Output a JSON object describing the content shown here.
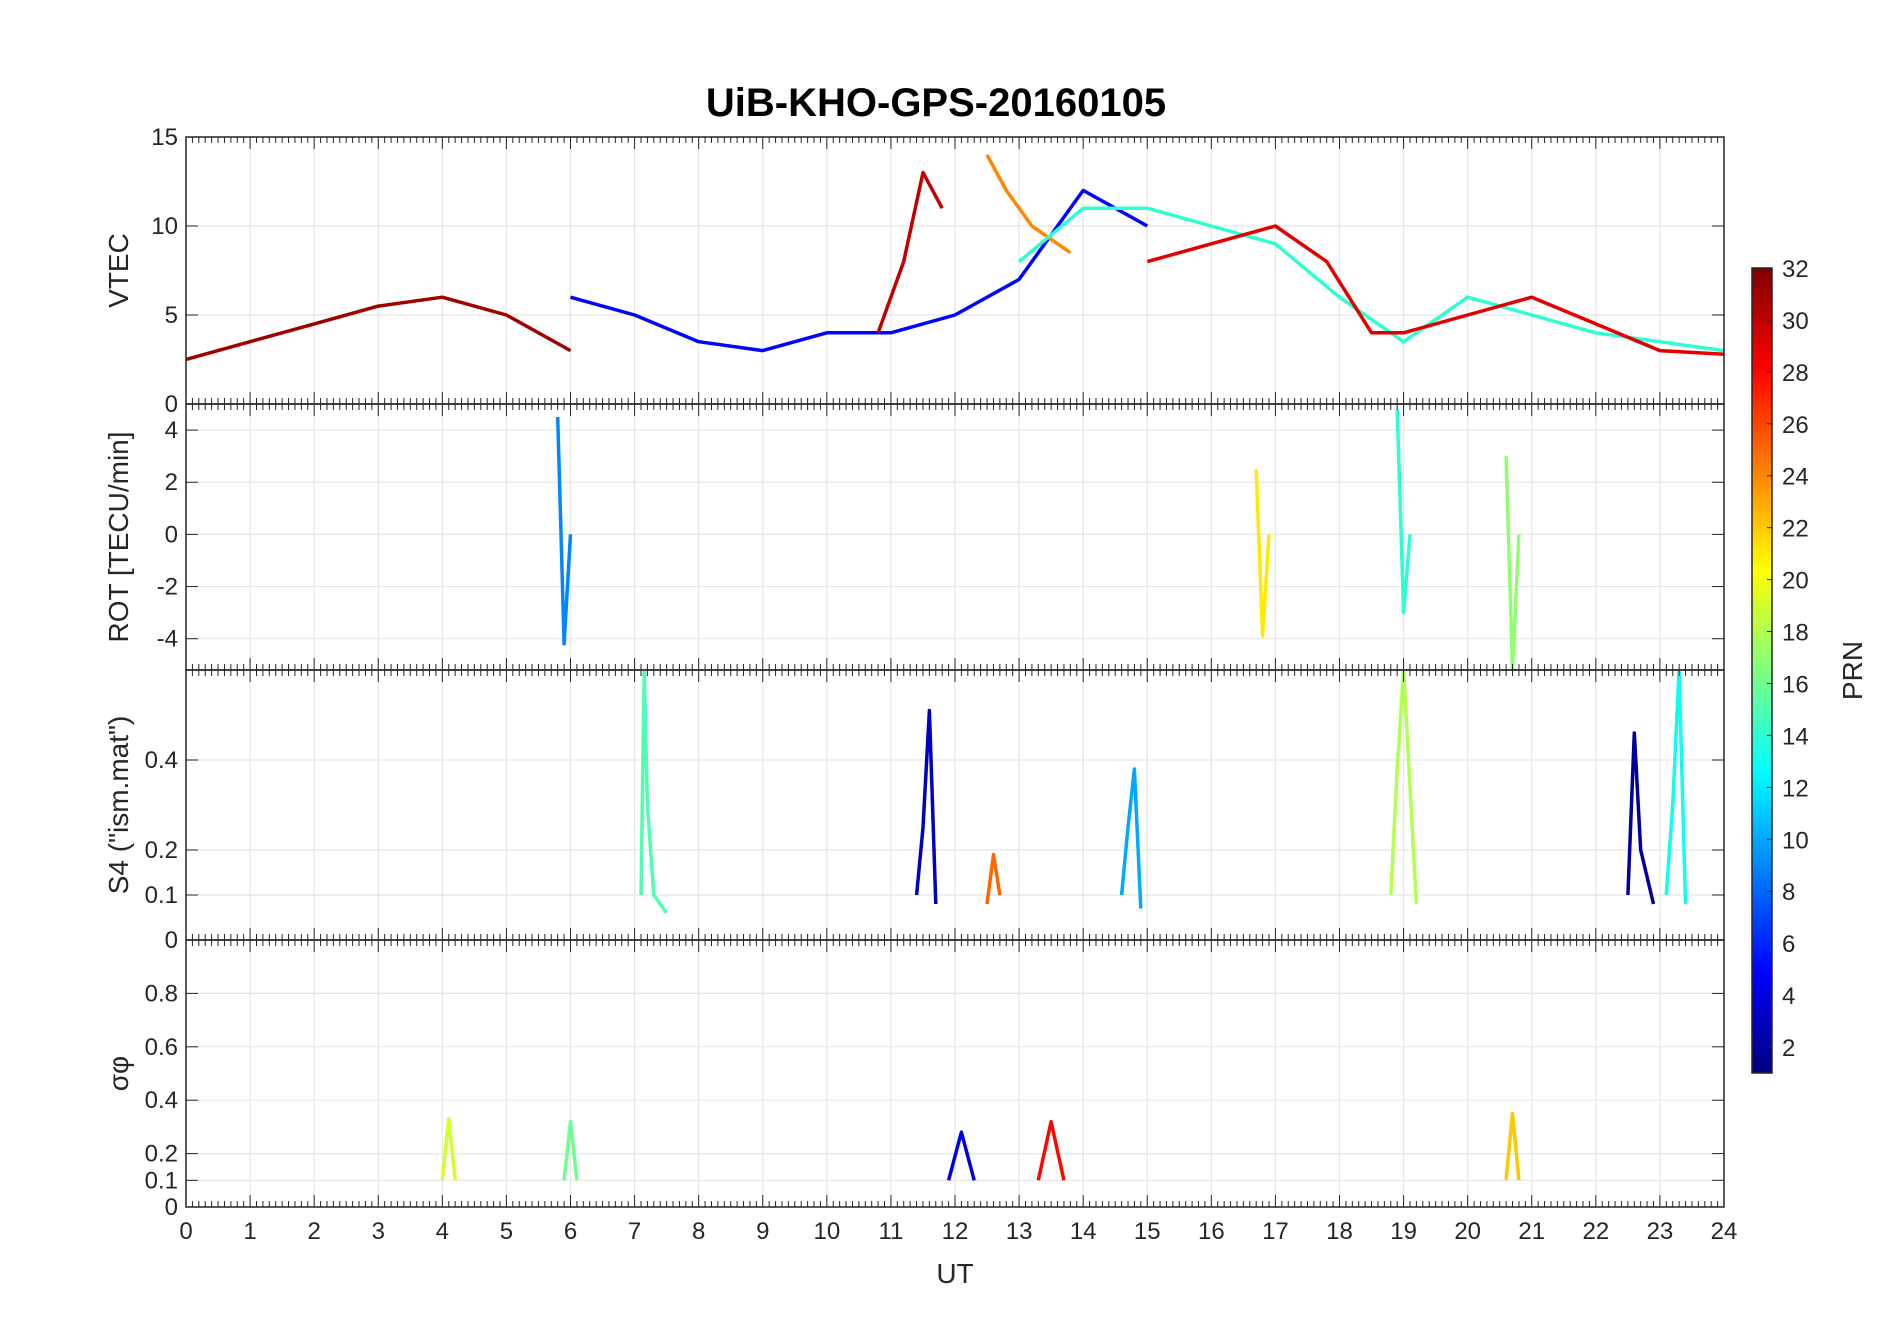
{
  "title": "UiB-KHO-GPS-20160105",
  "colors": {
    "jet_stops": [
      "#00007f",
      "#0000ff",
      "#007fff",
      "#00ffff",
      "#7fff7f",
      "#ffff00",
      "#ff7f00",
      "#ff0000",
      "#7f0000"
    ],
    "axes": "#262626",
    "grid": "#e6e6e6"
  },
  "chart_data": [
    {
      "type": "line",
      "panel": "vtec",
      "ylabel": "VTEC",
      "xlim": [
        0,
        24
      ],
      "ylim": [
        0,
        15
      ],
      "yticks": [
        0,
        5,
        10,
        15
      ],
      "ytick_labels": [
        "0",
        "5",
        "10",
        "15"
      ],
      "series": [
        {
          "prn": 31,
          "x": [
            0,
            1,
            2,
            3,
            4,
            5,
            6
          ],
          "y": [
            2.5,
            3.5,
            4.5,
            5.5,
            6,
            5,
            3
          ]
        },
        {
          "prn": 5,
          "x": [
            6,
            7,
            8,
            9,
            10,
            11,
            12,
            13,
            14,
            15
          ],
          "y": [
            6,
            5,
            3.5,
            3,
            4,
            4,
            5,
            7,
            12,
            10
          ]
        },
        {
          "prn": 30,
          "x": [
            10.8,
            11.2,
            11.5,
            11.8
          ],
          "y": [
            4,
            8,
            13,
            11
          ]
        },
        {
          "prn": 24,
          "x": [
            12.5,
            12.8,
            13.2,
            13.8
          ],
          "y": [
            14,
            12,
            10,
            8.5
          ]
        },
        {
          "prn": 14,
          "x": [
            13,
            14,
            15,
            16,
            17,
            18,
            19,
            20,
            21,
            22,
            23,
            24
          ],
          "y": [
            8,
            11,
            11,
            10,
            9,
            6,
            3.5,
            6,
            5,
            4,
            3.5,
            3
          ]
        },
        {
          "prn": 29,
          "x": [
            15,
            16,
            17,
            17.8,
            18.5,
            19,
            20,
            21,
            22,
            23,
            24
          ],
          "y": [
            8,
            9,
            10,
            8,
            4,
            4,
            5,
            6,
            4.5,
            3,
            2.8
          ]
        }
      ]
    },
    {
      "type": "line",
      "panel": "rot",
      "ylabel": "ROT [TECU/min]",
      "xlim": [
        0,
        24
      ],
      "ylim": [
        -5.2,
        5
      ],
      "yticks": [
        -4,
        -2,
        0,
        2,
        4
      ],
      "ytick_labels": [
        "-4",
        "-2",
        "0",
        "2",
        "4"
      ],
      "series": [
        {
          "prn": 9,
          "x": [
            5.8,
            5.9,
            6.0
          ],
          "y": [
            4.5,
            -4.2,
            0
          ]
        },
        {
          "prn": 14,
          "x": [
            18.9,
            19.0,
            19.1
          ],
          "y": [
            4.8,
            -3,
            0
          ]
        },
        {
          "prn": 17,
          "x": [
            20.6,
            20.7,
            20.8
          ],
          "y": [
            3,
            -5.2,
            0
          ]
        },
        {
          "prn": 21,
          "x": [
            16.7,
            16.8,
            16.9
          ],
          "y": [
            2.5,
            -3.9,
            0
          ]
        }
      ]
    },
    {
      "type": "line",
      "panel": "s4",
      "ylabel": "S4 (\"ism.mat\")",
      "xlim": [
        0,
        24
      ],
      "ylim": [
        0,
        0.6
      ],
      "yticks": [
        0,
        0.1,
        0.2,
        0.4
      ],
      "ytick_labels": [
        "0",
        "0.1",
        "0.2",
        "0.4"
      ],
      "series": [
        {
          "prn": 15,
          "x": [
            7.1,
            7.15,
            7.2,
            7.3,
            7.5
          ],
          "y": [
            0.1,
            0.6,
            0.3,
            0.1,
            0.06
          ]
        },
        {
          "prn": 3,
          "x": [
            11.4,
            11.5,
            11.6,
            11.7
          ],
          "y": [
            0.1,
            0.25,
            0.51,
            0.08
          ]
        },
        {
          "prn": 10,
          "x": [
            14.6,
            14.7,
            14.8,
            14.9
          ],
          "y": [
            0.1,
            0.25,
            0.38,
            0.07
          ]
        },
        {
          "prn": 18,
          "x": [
            18.8,
            18.9,
            19.0,
            19.2
          ],
          "y": [
            0.1,
            0.38,
            0.6,
            0.08
          ]
        },
        {
          "prn": 2,
          "x": [
            22.5,
            22.6,
            22.7,
            22.9
          ],
          "y": [
            0.1,
            0.46,
            0.2,
            0.08
          ]
        },
        {
          "prn": 13,
          "x": [
            23.1,
            23.2,
            23.3,
            23.4
          ],
          "y": [
            0.1,
            0.3,
            0.6,
            0.08
          ]
        },
        {
          "prn": 25,
          "x": [
            12.5,
            12.6,
            12.7
          ],
          "y": [
            0.08,
            0.19,
            0.1
          ]
        }
      ]
    },
    {
      "type": "line",
      "panel": "sigma_phi",
      "ylabel": "σφ",
      "xlabel": "UT",
      "xlim": [
        0,
        24
      ],
      "ylim": [
        0,
        1
      ],
      "yticks": [
        0,
        0.1,
        0.2,
        0.4,
        0.6,
        0.8
      ],
      "ytick_labels": [
        "0",
        "0.1",
        "0.2",
        "0.4",
        "0.6",
        "0.8"
      ],
      "xticks": [
        0,
        1,
        2,
        3,
        4,
        5,
        6,
        7,
        8,
        9,
        10,
        11,
        12,
        13,
        14,
        15,
        16,
        17,
        18,
        19,
        20,
        21,
        22,
        23,
        24
      ],
      "xtick_labels": [
        "0",
        "1",
        "2",
        "3",
        "4",
        "5",
        "6",
        "7",
        "8",
        "9",
        "10",
        "11",
        "12",
        "13",
        "14",
        "15",
        "16",
        "17",
        "18",
        "19",
        "20",
        "21",
        "22",
        "23",
        "24"
      ],
      "series": [
        {
          "prn": 19,
          "x": [
            4.0,
            4.1,
            4.2
          ],
          "y": [
            0.1,
            0.33,
            0.1
          ]
        },
        {
          "prn": 16,
          "x": [
            5.9,
            6.0,
            6.1
          ],
          "y": [
            0.1,
            0.32,
            0.1
          ]
        },
        {
          "prn": 4,
          "x": [
            11.9,
            12.1,
            12.3
          ],
          "y": [
            0.1,
            0.28,
            0.1
          ]
        },
        {
          "prn": 28,
          "x": [
            13.3,
            13.5,
            13.7
          ],
          "y": [
            0.1,
            0.32,
            0.1
          ]
        },
        {
          "prn": 22,
          "x": [
            20.6,
            20.7,
            20.8
          ],
          "y": [
            0.1,
            0.35,
            0.1
          ]
        }
      ]
    }
  ],
  "colorbar": {
    "label": "PRN",
    "range": [
      1,
      32
    ],
    "ticks": [
      2,
      4,
      6,
      8,
      10,
      12,
      14,
      16,
      18,
      20,
      22,
      24,
      26,
      28,
      30,
      32
    ],
    "tick_labels": [
      "2",
      "4",
      "6",
      "8",
      "10",
      "12",
      "14",
      "16",
      "18",
      "20",
      "22",
      "24",
      "26",
      "28",
      "30",
      "32"
    ]
  }
}
